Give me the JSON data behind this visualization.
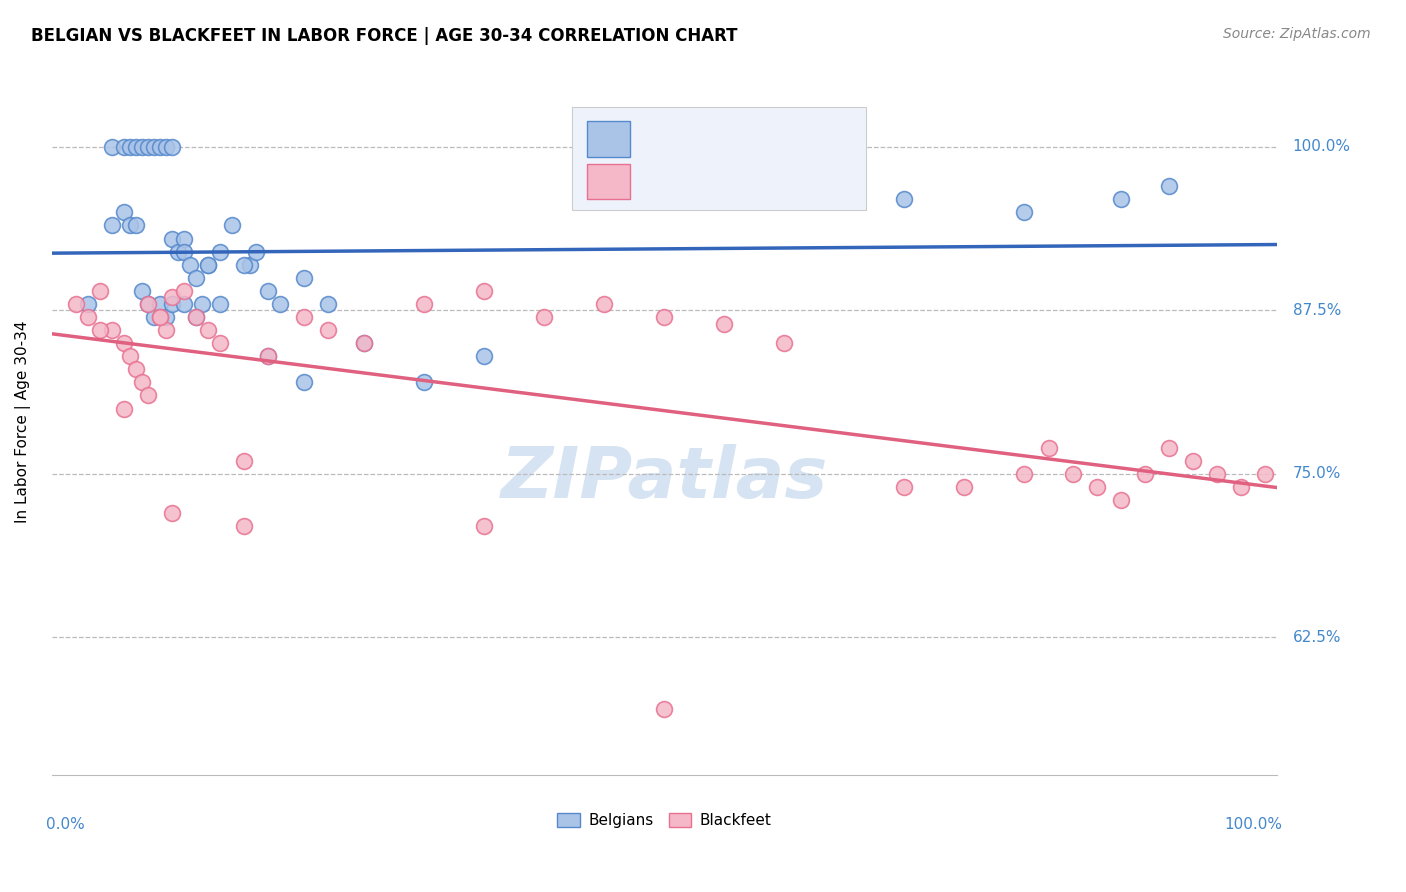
{
  "title": "BELGIAN VS BLACKFEET IN LABOR FORCE | AGE 30-34 CORRELATION CHART",
  "source": "Source: ZipAtlas.com",
  "ylabel": "In Labor Force | Age 30-34",
  "blue_color": "#aac4e8",
  "pink_color": "#f4b8c8",
  "blue_edge_color": "#5588cc",
  "pink_edge_color": "#e87090",
  "blue_line_color": "#3366bb",
  "pink_line_color": "#e06080",
  "ytick_values": [
    0.625,
    0.75,
    0.875,
    1.0
  ],
  "ytick_labels": [
    "62.5%",
    "75.0%",
    "87.5%",
    "100.0%"
  ],
  "ymin": 0.52,
  "ymax": 1.06,
  "xmin": -0.01,
  "xmax": 1.01,
  "belgians_x": [
    0.02,
    0.04,
    0.05,
    0.055,
    0.06,
    0.065,
    0.07,
    0.075,
    0.08,
    0.085,
    0.09,
    0.09,
    0.095,
    0.1,
    0.1,
    0.105,
    0.11,
    0.115,
    0.12,
    0.13,
    0.14,
    0.155,
    0.16,
    0.17,
    0.18,
    0.2,
    0.22,
    0.25,
    0.3,
    0.35,
    0.04,
    0.05,
    0.055,
    0.06,
    0.065,
    0.07,
    0.075,
    0.08,
    0.085,
    0.09,
    0.1,
    0.11,
    0.12,
    0.13,
    0.15,
    0.17,
    0.2,
    0.7,
    0.8,
    0.88,
    0.92
  ],
  "belgians_y": [
    0.88,
    1.0,
    1.0,
    1.0,
    1.0,
    1.0,
    1.0,
    1.0,
    1.0,
    1.0,
    1.0,
    0.93,
    0.92,
    0.93,
    0.92,
    0.91,
    0.9,
    0.88,
    0.91,
    0.88,
    0.94,
    0.91,
    0.92,
    0.89,
    0.88,
    0.9,
    0.88,
    0.85,
    0.82,
    0.84,
    0.94,
    0.95,
    0.94,
    0.94,
    0.89,
    0.88,
    0.87,
    0.88,
    0.87,
    0.88,
    0.88,
    0.87,
    0.91,
    0.92,
    0.91,
    0.84,
    0.82,
    0.96,
    0.95,
    0.96,
    0.97
  ],
  "blackfeet_x": [
    0.01,
    0.02,
    0.03,
    0.04,
    0.05,
    0.055,
    0.06,
    0.065,
    0.07,
    0.08,
    0.085,
    0.09,
    0.1,
    0.11,
    0.12,
    0.13,
    0.15,
    0.17,
    0.2,
    0.22,
    0.25,
    0.3,
    0.35,
    0.4,
    0.45,
    0.5,
    0.55,
    0.6,
    0.7,
    0.75,
    0.8,
    0.82,
    0.84,
    0.86,
    0.88,
    0.9,
    0.92,
    0.94,
    0.96,
    0.98,
    1.0,
    0.03,
    0.05,
    0.07,
    0.08,
    0.09,
    0.15,
    0.35,
    0.5
  ],
  "blackfeet_y": [
    0.88,
    0.87,
    0.89,
    0.86,
    0.85,
    0.84,
    0.83,
    0.82,
    0.88,
    0.87,
    0.86,
    0.885,
    0.89,
    0.87,
    0.86,
    0.85,
    0.71,
    0.84,
    0.87,
    0.86,
    0.85,
    0.88,
    0.89,
    0.87,
    0.88,
    0.87,
    0.865,
    0.85,
    0.74,
    0.74,
    0.75,
    0.77,
    0.75,
    0.74,
    0.73,
    0.75,
    0.77,
    0.76,
    0.75,
    0.74,
    0.75,
    0.86,
    0.8,
    0.81,
    0.87,
    0.72,
    0.76,
    0.71,
    0.57
  ],
  "watermark_text": "ZIPatlas",
  "watermark_color": "#ccddf0",
  "tick_color": "#4488cc"
}
